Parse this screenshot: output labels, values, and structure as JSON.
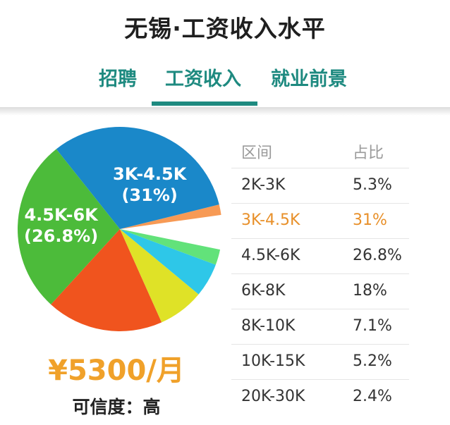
{
  "title": "无锡·工资收入水平",
  "tabs": [
    {
      "label": "招聘",
      "active": false
    },
    {
      "label": "工资收入",
      "active": true
    },
    {
      "label": "就业前景",
      "active": false
    }
  ],
  "colors": {
    "accent": "#1e8a80",
    "highlight": "#e8902a",
    "salary": "#f0a12a"
  },
  "chart_data": {
    "type": "pie",
    "table_headers": {
      "range": "区间",
      "share": "占比"
    },
    "slices": [
      {
        "range": "2K-3K",
        "value": 5.3,
        "share_label": "5.3%",
        "color": "#2aa0d8"
      },
      {
        "range": "3K-4.5K",
        "value": 31,
        "share_label": "31%",
        "color": "#1a88c9",
        "highlight": true,
        "pie_label": "3K-4.5K\n(31%)"
      },
      {
        "range": "4.5K-6K",
        "value": 26.8,
        "share_label": "26.8%",
        "color": "#4cbb3a",
        "pie_label": "4.5K-6K\n(26.8%)"
      },
      {
        "range": "6K-8K",
        "value": 18,
        "share_label": "18%",
        "color": "#f0541e"
      },
      {
        "range": "8K-10K",
        "value": 7.1,
        "share_label": "7.1%",
        "color": "#dfe227"
      },
      {
        "range": "10K-15K",
        "value": 5.2,
        "share_label": "5.2%",
        "color": "#2ec7e8"
      },
      {
        "range": "20K-30K",
        "value": 2.4,
        "share_label": "2.4%",
        "color": "#62e27a"
      },
      {
        "range": "",
        "value": 1.6,
        "share_label": "",
        "color": "#f79a55"
      }
    ]
  },
  "salary": "¥5300/月",
  "credibility": "可信度：高"
}
